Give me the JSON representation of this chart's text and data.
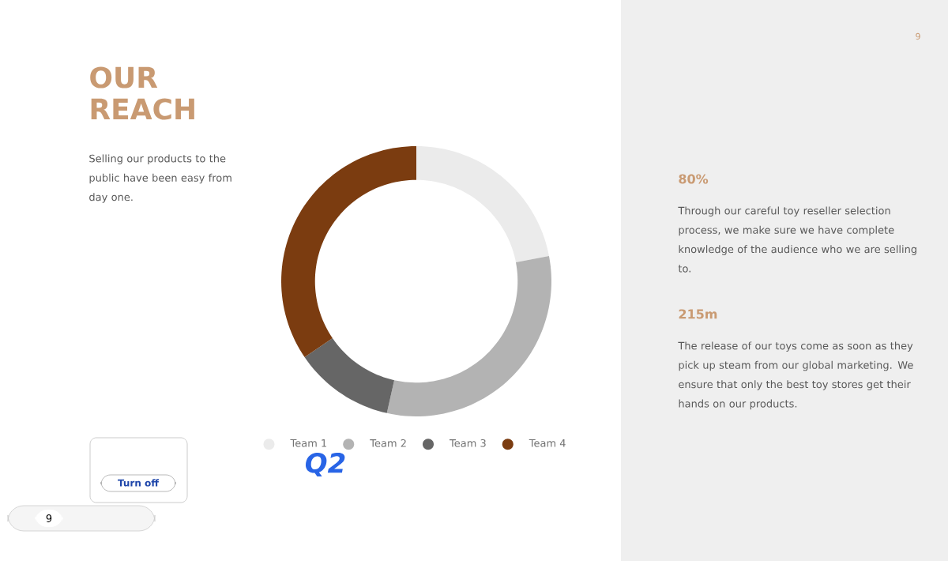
{
  "chart_data": {
    "type": "donut",
    "title": "OUR REACH",
    "subtitle": "Selling our products to the public have been easy from day one.",
    "categories": [
      "Team 1",
      "Team 2",
      "Team 3",
      "Team 4"
    ],
    "values": [
      22,
      31.5,
      12,
      34.5
    ],
    "colors": [
      "#ebebeb",
      "#b3b3b3",
      "#666666",
      "#7b3c10"
    ],
    "legend": "bottom",
    "annotations": [
      "80%",
      "Through our careful toy reseller selection process, we make sure we have complete knowledge of the audience who we are selling to.",
      "215m",
      "The release of our toys come as soon as they pick up steam from our global marketing. We ensure that only the best toy stores get their hands on our products.",
      "9",
      "Q2",
      "Turn off",
      "9"
    ]
  }
}
